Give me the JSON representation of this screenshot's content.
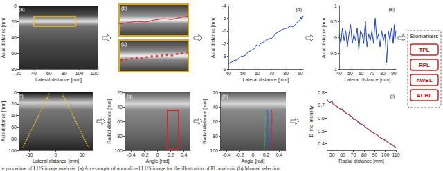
{
  "chart_data": [
    {
      "label": "(a)",
      "type": "image",
      "xlabel": "Lateral distance [mm]",
      "ylabel": "Axial distance [mm]",
      "xlim": [
        20,
        125
      ],
      "xticks": [
        20,
        40,
        60,
        80,
        100,
        120
      ],
      "ylim": [
        0,
        80
      ],
      "yticks": [
        0,
        20,
        40,
        60,
        80
      ],
      "series": [
        {
          "type": "rect",
          "color": "#f0c020",
          "x": [
            40,
            95
          ],
          "values": [
            14,
            26
          ]
        }
      ]
    },
    {
      "label": "(b)",
      "type": "image",
      "tick_labels": false,
      "xlim": [
        40,
        95
      ],
      "ylim": [
        14,
        26
      ],
      "series": [
        {
          "type": "line",
          "color": "#e02020",
          "line_style": "solid",
          "x": [
            40,
            47,
            54,
            61,
            68,
            75,
            82,
            89,
            95
          ],
          "values": [
            21.5,
            21,
            20.5,
            20.8,
            20,
            19.5,
            19.8,
            19,
            18.5
          ]
        }
      ]
    },
    {
      "label": "(c)",
      "type": "image",
      "tick_labels": false,
      "xlim": [
        40,
        95
      ],
      "ylim": [
        14,
        26
      ],
      "series": [
        {
          "type": "scatter",
          "color": "#e02020",
          "marker": "circle",
          "x": [
            42,
            46,
            50,
            54,
            58,
            62,
            66,
            70,
            74,
            78,
            82,
            86,
            90,
            94
          ],
          "values": [
            21.6,
            21.3,
            21,
            20.8,
            20.9,
            20.5,
            20.2,
            20.1,
            19.9,
            19.6,
            19.8,
            19.3,
            19.0,
            18.7
          ]
        }
      ]
    },
    {
      "label": "(d)",
      "type": "line",
      "xlabel": "Lateral distance [mm]",
      "ylabel": "Axial distance [mm]",
      "xlim": [
        40,
        92
      ],
      "xticks": [
        40,
        50,
        60,
        70,
        80,
        90
      ],
      "ylim": [
        -9,
        -4
      ],
      "yticks": [
        -9,
        -8,
        -7,
        -6,
        -5,
        -4
      ],
      "series": [
        {
          "type": "line",
          "color": "#1a3fd0",
          "line_style": "solid",
          "x": [
            40,
            41.5,
            43,
            44.5,
            46,
            47.5,
            49,
            50.5,
            52,
            53.5,
            55,
            56.5,
            58,
            59.5,
            61,
            62.5,
            64,
            65.5,
            67,
            68.5,
            70,
            71.5,
            73,
            74.5,
            76,
            77.5,
            79,
            80.5,
            82,
            83.5,
            85,
            86.5,
            88,
            89.5,
            90.5,
            91,
            92
          ],
          "values": [
            -8.6,
            -8.5,
            -8.4,
            -8.3,
            -8.3,
            -8.1,
            -8.0,
            -8.0,
            -7.9,
            -7.7,
            -7.6,
            -7.5,
            -7.4,
            -7.1,
            -7.2,
            -7.0,
            -6.9,
            -6.8,
            -6.7,
            -6.6,
            -6.6,
            -6.4,
            -6.2,
            -6.1,
            -6.0,
            -5.9,
            -5.8,
            -5.8,
            -5.7,
            -5.6,
            -5.7,
            -5.5,
            -5.3,
            -5.2,
            -4.9,
            -5.1,
            -4.8
          ]
        }
      ]
    },
    {
      "label": "(e)",
      "type": "line",
      "xlabel": "Lateral distance [mm]",
      "ylabel": "Axial distance [mm]",
      "xlim": [
        40,
        92
      ],
      "xticks": [
        40,
        50,
        60,
        70,
        80,
        90
      ],
      "ylim": [
        -1,
        1
      ],
      "yticks": [
        -1,
        -0.5,
        0,
        0.5,
        1
      ],
      "series": [
        {
          "type": "line",
          "color": "#1a3fd0",
          "line_style": "solid",
          "x": [
            40,
            41.5,
            43,
            44.5,
            46,
            47.5,
            49,
            50.5,
            52,
            53.5,
            55,
            56.5,
            58,
            59.5,
            61,
            62.5,
            64,
            65.5,
            67,
            68.5,
            70,
            71.5,
            73,
            74.5,
            76,
            77.5,
            79,
            80.5,
            82,
            83.5,
            85,
            86.5,
            88,
            89.5,
            90.5,
            91,
            92
          ],
          "values": [
            0.1,
            -0.2,
            0.3,
            -0.1,
            0.2,
            -0.3,
            0.1,
            0.4,
            -0.2,
            0.1,
            -0.1,
            0.3,
            -0.4,
            0.2,
            0.1,
            -0.2,
            0.5,
            -0.3,
            0.1,
            -0.1,
            0.2,
            -0.2,
            0.6,
            -0.1,
            0.1,
            -0.3,
            0.2,
            -0.1,
            0.1,
            -0.8,
            0.2,
            -0.1,
            0.3,
            -0.2,
            0.4,
            -0.1,
            0.2
          ]
        }
      ]
    },
    {
      "label": "(f)",
      "type": "image",
      "xlabel": "Lateral distance [mm]",
      "ylabel": "Axis distance [mm]",
      "xlim": [
        -70,
        70
      ],
      "xticks": [
        -50,
        0,
        50
      ],
      "ylim": [
        0,
        100
      ],
      "yticks": [
        0,
        20,
        40,
        60,
        80,
        100
      ],
      "series": [
        {
          "type": "line",
          "color": "#f0c020",
          "line_style": "dotted",
          "x": [
            -12,
            -62
          ],
          "values": [
            2,
            95
          ]
        },
        {
          "type": "line",
          "color": "#f0c020",
          "line_style": "dotted",
          "x": [
            12,
            62
          ],
          "values": [
            2,
            95
          ]
        }
      ]
    },
    {
      "label": "(g)",
      "type": "image",
      "xlabel": "Angle [rad]",
      "ylabel": "Radial distance [mm]",
      "xlim": [
        -0.5,
        0.5
      ],
      "xticks": [
        -0.4,
        -0.2,
        0,
        0.2,
        0.4
      ],
      "ylim": [
        20,
        100
      ],
      "yticks": [
        20,
        40,
        60,
        80,
        100
      ],
      "series": [
        {
          "type": "rect",
          "color": "#e02020",
          "x": [
            0.15,
            0.32
          ],
          "values": [
            45,
            98
          ]
        }
      ]
    },
    {
      "label": "(h)",
      "type": "image",
      "xlabel": "Angle [rad]",
      "ylabel": "Radial distance [mm]",
      "xlim": [
        -0.5,
        0.5
      ],
      "xticks": [
        -0.4,
        -0.2,
        0,
        0.2,
        0.4
      ],
      "ylim": [
        20,
        100
      ],
      "yticks": [
        20,
        40,
        60,
        80,
        100
      ],
      "series": [
        {
          "type": "line",
          "color": "#22c55e",
          "line_style": "dotted",
          "x": [
            0.17,
            0.18,
            0.17,
            0.18,
            0.17
          ],
          "values": [
            45,
            58,
            71,
            84,
            98
          ]
        },
        {
          "type": "line",
          "color": "#2050ff",
          "line_style": "dotted",
          "x": [
            0.22,
            0.23,
            0.22,
            0.23,
            0.22
          ],
          "values": [
            45,
            58,
            71,
            84,
            98
          ]
        },
        {
          "type": "line",
          "color": "#e02020",
          "line_style": "dotted",
          "x": [
            0.28,
            0.29,
            0.28,
            0.29,
            0.28
          ],
          "values": [
            45,
            58,
            71,
            84,
            98
          ]
        }
      ]
    },
    {
      "label": "(i)",
      "type": "line",
      "xlabel": "Radial distance [mm]",
      "ylabel": "B line intensity",
      "xlim": [
        45,
        110
      ],
      "xticks": [
        50,
        60,
        70,
        80,
        90,
        100,
        110
      ],
      "ylim": [
        0.35,
        0.8
      ],
      "yticks": [
        0.4,
        0.5,
        0.6,
        0.7,
        0.8
      ],
      "series": [
        {
          "type": "line",
          "color": "#1a3fd0",
          "line_style": "solid",
          "x": [
            45,
            47.5,
            50,
            52.5,
            55,
            57.5,
            60,
            62.5,
            65,
            67.5,
            70,
            72.5,
            75,
            77.5,
            80,
            82.5,
            85,
            87.5,
            90,
            92.5,
            95,
            97.5,
            100,
            102.5,
            105,
            107.5,
            110
          ],
          "values": [
            0.75,
            0.72,
            0.73,
            0.7,
            0.69,
            0.67,
            0.67,
            0.64,
            0.63,
            0.62,
            0.59,
            0.59,
            0.56,
            0.55,
            0.54,
            0.52,
            0.51,
            0.49,
            0.48,
            0.47,
            0.45,
            0.44,
            0.43,
            0.41,
            0.4,
            0.39,
            0.37
          ]
        },
        {
          "type": "line",
          "color": "#e02020",
          "line_style": "solid",
          "x": [
            45,
            60,
            75,
            90,
            110
          ],
          "values": [
            0.74,
            0.66,
            0.57,
            0.48,
            0.37
          ]
        }
      ]
    }
  ],
  "biomarkers": {
    "title": "Biomarkers",
    "items": [
      "TPL",
      "RPL",
      "AWBL",
      "ACBL"
    ]
  },
  "caption": "e procedure of LUS image analysis. (a) An example of normalized LUS image for the illustration of PL analysis. (b) Manual selection"
}
